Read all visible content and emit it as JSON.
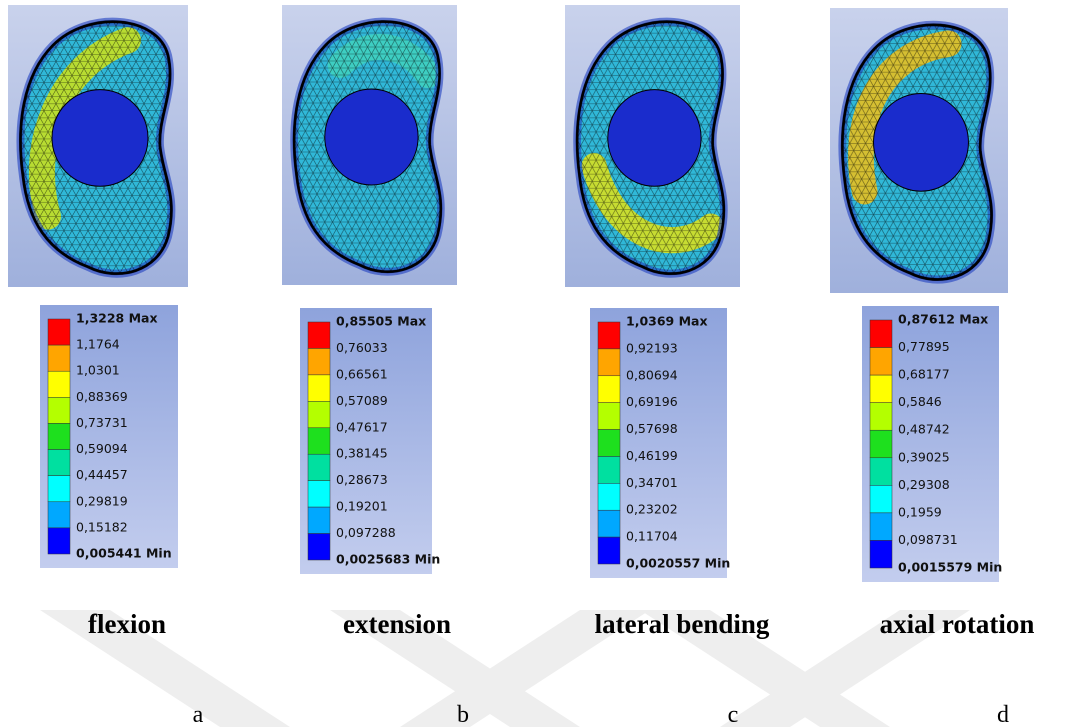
{
  "panels": [
    {
      "legend": [
        "1,3228 Max",
        "1,1764",
        "1,0301",
        "0,88369",
        "0,73731",
        "0,59094",
        "0,44457",
        "0,29819",
        "0,15182",
        "0,005441 Min"
      ],
      "caption": "flexion",
      "letter": "a"
    },
    {
      "legend": [
        "0,85505 Max",
        "0,76033",
        "0,66561",
        "0,57089",
        "0,47617",
        "0,38145",
        "0,28673",
        "0,19201",
        "0,097288",
        "0,0025683 Min"
      ],
      "caption": "extension",
      "letter": "b"
    },
    {
      "legend": [
        "1,0369 Max",
        "0,92193",
        "0,80694",
        "0,69196",
        "0,57698",
        "0,46199",
        "0,34701",
        "0,23202",
        "0,11704",
        "0,0020557 Min"
      ],
      "caption": "lateral bending",
      "letter": "c"
    },
    {
      "legend": [
        "0,87612 Max",
        "0,77895",
        "0,68177",
        "0,5846",
        "0,48742",
        "0,39025",
        "0,29308",
        "0,1959",
        "0,098731",
        "0,0015579 Min"
      ],
      "caption": "axial rotation",
      "letter": "d"
    }
  ]
}
